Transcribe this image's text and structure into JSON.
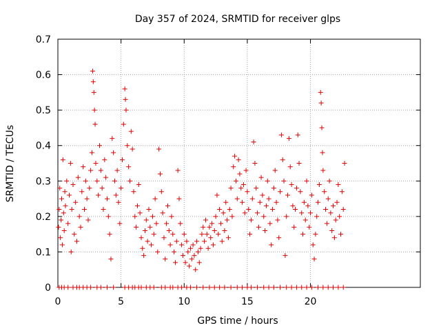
{
  "chart_data": {
    "type": "scatter",
    "title": "Day 357 of 2024, SRMTID for receiver glps",
    "xlabel": "GPS time / hours",
    "ylabel": "SRMTID / TECUs",
    "xlim": [
      0,
      28.7
    ],
    "ylim": [
      0,
      0.7
    ],
    "x_ticks": [
      0,
      5,
      10,
      15,
      20
    ],
    "x_tick_labels": [
      "0",
      "5",
      "10",
      "15",
      "20"
    ],
    "y_ticks": [
      0,
      0.1,
      0.2,
      0.3,
      0.4,
      0.5,
      0.6,
      0.7
    ],
    "y_tick_labels": [
      "0",
      "0.1",
      "0.2",
      "0.3",
      "0.4",
      "0.5",
      "0.6",
      "0.7"
    ],
    "grid": true,
    "marker": "+",
    "color": "#e00000",
    "series": [
      {
        "name": "SRMTID",
        "points": [
          [
            0.05,
            0.17
          ],
          [
            0.1,
            0.22
          ],
          [
            0.15,
            0.28
          ],
          [
            0.2,
            0.14
          ],
          [
            0.25,
            0.19
          ],
          [
            0.3,
            0.25
          ],
          [
            0.35,
            0.12
          ],
          [
            0.4,
            0.36
          ],
          [
            0.45,
            0.21
          ],
          [
            0.5,
            0.16
          ],
          [
            0.55,
            0.27
          ],
          [
            0.6,
            0.23
          ],
          [
            0.7,
            0.3
          ],
          [
            0.8,
            0.18
          ],
          [
            0.9,
            0.26
          ],
          [
            1.0,
            0.35
          ],
          [
            1.05,
            0.1
          ],
          [
            1.1,
            0.22
          ],
          [
            1.2,
            0.29
          ],
          [
            1.3,
            0.15
          ],
          [
            1.4,
            0.24
          ],
          [
            1.5,
            0.13
          ],
          [
            1.6,
            0.31
          ],
          [
            1.7,
            0.2
          ],
          [
            1.8,
            0.17
          ],
          [
            1.9,
            0.27
          ],
          [
            2.0,
            0.34
          ],
          [
            2.1,
            0.22
          ],
          [
            2.2,
            0.3
          ],
          [
            2.3,
            0.25
          ],
          [
            2.4,
            0.19
          ],
          [
            2.5,
            0.28
          ],
          [
            2.6,
            0.33
          ],
          [
            2.7,
            0.38
          ],
          [
            2.75,
            0.61
          ],
          [
            2.8,
            0.58
          ],
          [
            2.85,
            0.55
          ],
          [
            2.9,
            0.5
          ],
          [
            2.95,
            0.46
          ],
          [
            3.0,
            0.35
          ],
          [
            3.1,
            0.3
          ],
          [
            3.2,
            0.26
          ],
          [
            3.3,
            0.4
          ],
          [
            3.4,
            0.33
          ],
          [
            3.5,
            0.28
          ],
          [
            3.6,
            0.22
          ],
          [
            3.7,
            0.36
          ],
          [
            3.8,
            0.31
          ],
          [
            3.9,
            0.25
          ],
          [
            4.0,
            0.2
          ],
          [
            4.1,
            0.15
          ],
          [
            4.2,
            0.08
          ],
          [
            4.3,
            0.42
          ],
          [
            4.4,
            0.38
          ],
          [
            4.5,
            0.3
          ],
          [
            4.6,
            0.26
          ],
          [
            4.7,
            0.33
          ],
          [
            4.8,
            0.24
          ],
          [
            4.9,
            0.18
          ],
          [
            5.0,
            0.28
          ],
          [
            5.1,
            0.36
          ],
          [
            5.2,
            0.46
          ],
          [
            5.3,
            0.56
          ],
          [
            5.35,
            0.53
          ],
          [
            5.4,
            0.5
          ],
          [
            5.5,
            0.4
          ],
          [
            5.6,
            0.34
          ],
          [
            5.7,
            0.3
          ],
          [
            5.8,
            0.44
          ],
          [
            5.9,
            0.39
          ],
          [
            6.0,
            0.27
          ],
          [
            6.1,
            0.2
          ],
          [
            6.2,
            0.17
          ],
          [
            6.3,
            0.23
          ],
          [
            6.4,
            0.29
          ],
          [
            6.5,
            0.21
          ],
          [
            6.6,
            0.14
          ],
          [
            6.7,
            0.11
          ],
          [
            6.8,
            0.09
          ],
          [
            6.9,
            0.16
          ],
          [
            7.0,
            0.19
          ],
          [
            7.1,
            0.13
          ],
          [
            7.2,
            0.22
          ],
          [
            7.3,
            0.17
          ],
          [
            7.4,
            0.12
          ],
          [
            7.5,
            0.2
          ],
          [
            7.6,
            0.15
          ],
          [
            7.7,
            0.25
          ],
          [
            7.8,
            0.18
          ],
          [
            7.9,
            0.1
          ],
          [
            8.0,
            0.39
          ],
          [
            8.1,
            0.32
          ],
          [
            8.2,
            0.27
          ],
          [
            8.3,
            0.21
          ],
          [
            8.4,
            0.14
          ],
          [
            8.5,
            0.08
          ],
          [
            8.6,
            0.18
          ],
          [
            8.7,
            0.23
          ],
          [
            8.8,
            0.16
          ],
          [
            8.9,
            0.12
          ],
          [
            9.0,
            0.2
          ],
          [
            9.1,
            0.15
          ],
          [
            9.2,
            0.1
          ],
          [
            9.3,
            0.07
          ],
          [
            9.4,
            0.13
          ],
          [
            9.5,
            0.33
          ],
          [
            9.6,
            0.25
          ],
          [
            9.7,
            0.18
          ],
          [
            9.8,
            0.12
          ],
          [
            9.9,
            0.09
          ],
          [
            10.0,
            0.15
          ],
          [
            10.1,
            0.07
          ],
          [
            10.2,
            0.13
          ],
          [
            10.3,
            0.1
          ],
          [
            10.4,
            0.06
          ],
          [
            10.5,
            0.11
          ],
          [
            10.6,
            0.08
          ],
          [
            10.7,
            0.12
          ],
          [
            10.8,
            0.09
          ],
          [
            10.9,
            0.05
          ],
          [
            11.0,
            0.13
          ],
          [
            11.1,
            0.1
          ],
          [
            11.2,
            0.07
          ],
          [
            11.3,
            0.11
          ],
          [
            11.4,
            0.15
          ],
          [
            11.5,
            0.17
          ],
          [
            11.6,
            0.13
          ],
          [
            11.7,
            0.19
          ],
          [
            11.8,
            0.15
          ],
          [
            11.9,
            0.11
          ],
          [
            12.0,
            0.17
          ],
          [
            12.1,
            0.14
          ],
          [
            12.2,
            0.18
          ],
          [
            12.3,
            0.12
          ],
          [
            12.4,
            0.16
          ],
          [
            12.5,
            0.2
          ],
          [
            12.6,
            0.26
          ],
          [
            12.7,
            0.15
          ],
          [
            12.8,
            0.22
          ],
          [
            12.9,
            0.18
          ],
          [
            13.0,
            0.13
          ],
          [
            13.1,
            0.21
          ],
          [
            13.2,
            0.16
          ],
          [
            13.3,
            0.24
          ],
          [
            13.4,
            0.19
          ],
          [
            13.5,
            0.14
          ],
          [
            13.6,
            0.22
          ],
          [
            13.7,
            0.28
          ],
          [
            13.8,
            0.2
          ],
          [
            13.9,
            0.34
          ],
          [
            14.0,
            0.37
          ],
          [
            14.1,
            0.3
          ],
          [
            14.2,
            0.25
          ],
          [
            14.3,
            0.36
          ],
          [
            14.4,
            0.32
          ],
          [
            14.5,
            0.28
          ],
          [
            14.6,
            0.24
          ],
          [
            14.7,
            0.29
          ],
          [
            14.8,
            0.21
          ],
          [
            14.9,
            0.33
          ],
          [
            15.0,
            0.27
          ],
          [
            15.1,
            0.22
          ],
          [
            15.2,
            0.15
          ],
          [
            15.3,
            0.19
          ],
          [
            15.4,
            0.25
          ],
          [
            15.5,
            0.41
          ],
          [
            15.6,
            0.35
          ],
          [
            15.7,
            0.28
          ],
          [
            15.8,
            0.21
          ],
          [
            15.9,
            0.17
          ],
          [
            16.0,
            0.24
          ],
          [
            16.1,
            0.31
          ],
          [
            16.2,
            0.26
          ],
          [
            16.3,
            0.2
          ],
          [
            16.4,
            0.16
          ],
          [
            16.5,
            0.23
          ],
          [
            16.6,
            0.3
          ],
          [
            16.7,
            0.25
          ],
          [
            16.8,
            0.18
          ],
          [
            16.9,
            0.12
          ],
          [
            17.0,
            0.22
          ],
          [
            17.1,
            0.28
          ],
          [
            17.2,
            0.33
          ],
          [
            17.3,
            0.24
          ],
          [
            17.4,
            0.19
          ],
          [
            17.5,
            0.14
          ],
          [
            17.6,
            0.27
          ],
          [
            17.7,
            0.43
          ],
          [
            17.8,
            0.36
          ],
          [
            17.9,
            0.3
          ],
          [
            18.0,
            0.09
          ],
          [
            18.1,
            0.2
          ],
          [
            18.2,
            0.26
          ],
          [
            18.3,
            0.42
          ],
          [
            18.4,
            0.34
          ],
          [
            18.5,
            0.29
          ],
          [
            18.6,
            0.23
          ],
          [
            18.7,
            0.17
          ],
          [
            18.8,
            0.22
          ],
          [
            18.9,
            0.28
          ],
          [
            19.0,
            0.43
          ],
          [
            19.1,
            0.35
          ],
          [
            19.2,
            0.27
          ],
          [
            19.3,
            0.21
          ],
          [
            19.4,
            0.15
          ],
          [
            19.5,
            0.24
          ],
          [
            19.6,
            0.19
          ],
          [
            19.7,
            0.3
          ],
          [
            19.8,
            0.23
          ],
          [
            19.9,
            0.17
          ],
          [
            20.0,
            0.21
          ],
          [
            20.1,
            0.26
          ],
          [
            20.2,
            0.12
          ],
          [
            20.3,
            0.08
          ],
          [
            20.4,
            0.15
          ],
          [
            20.5,
            0.2
          ],
          [
            20.6,
            0.24
          ],
          [
            20.7,
            0.29
          ],
          [
            20.8,
            0.55
          ],
          [
            20.85,
            0.52
          ],
          [
            20.9,
            0.45
          ],
          [
            20.95,
            0.38
          ],
          [
            21.0,
            0.33
          ],
          [
            21.1,
            0.27
          ],
          [
            21.2,
            0.22
          ],
          [
            21.3,
            0.18
          ],
          [
            21.4,
            0.25
          ],
          [
            21.5,
            0.3
          ],
          [
            21.6,
            0.21
          ],
          [
            21.7,
            0.16
          ],
          [
            21.8,
            0.23
          ],
          [
            21.9,
            0.14
          ],
          [
            22.0,
            0.19
          ],
          [
            22.1,
            0.24
          ],
          [
            22.2,
            0.29
          ],
          [
            22.3,
            0.2
          ],
          [
            22.4,
            0.15
          ],
          [
            22.5,
            0.27
          ],
          [
            22.6,
            0.22
          ],
          [
            22.7,
            0.35
          ]
        ],
        "zero_points_x": [
          0.1,
          0.3,
          0.5,
          0.8,
          1.2,
          1.5,
          1.7,
          2.0,
          2.3,
          2.6,
          3.1,
          3.4,
          3.9,
          4.4,
          5.3,
          5.6,
          5.9,
          6.1,
          6.4,
          6.6,
          7.0,
          7.3,
          7.6,
          8.2,
          8.5,
          8.9,
          9.1,
          9.5,
          9.8,
          10.2,
          10.5,
          11.0,
          11.5,
          12.0,
          12.4,
          12.8,
          13.2,
          13.7,
          14.2,
          14.6,
          15.0,
          15.3,
          15.8,
          16.3,
          16.7,
          17.1,
          17.6,
          18.1,
          18.5,
          18.9,
          19.3,
          19.7,
          20.1,
          20.6,
          21.0,
          21.4,
          21.8,
          22.2,
          22.6
        ]
      }
    ]
  }
}
